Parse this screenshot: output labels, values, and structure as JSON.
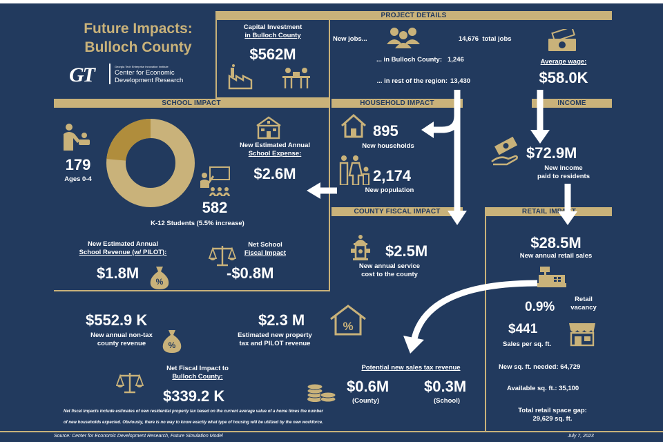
{
  "title": {
    "line1": "Future Impacts:",
    "line2": "Bulloch County"
  },
  "logo": {
    "mark": "GT",
    "smallprint": "Georgia Tech Enterprise Innovation Institute",
    "line1": "Center for Economic",
    "line2": "Development Research"
  },
  "headers": {
    "project_details": "PROJECT DETAILS",
    "school_impact": "SCHOOL IMPACT",
    "household_impact": "HOUSEHOLD IMPACT",
    "income": "INCOME",
    "county_fiscal": "COUNTY FISCAL IMPACT",
    "retail": "RETAIL IMPACT"
  },
  "capital": {
    "label1": "Capital Investment",
    "label2": "in Bulloch County",
    "value": "$562M"
  },
  "jobs": {
    "label": "New jobs...",
    "total_value": "14,676",
    "total_label": "total jobs",
    "county_label": "... in Bulloch County:",
    "county_value": "1,246",
    "region_label": "... in rest of the region:",
    "region_value": "13,430"
  },
  "wage": {
    "label": "Average wage:",
    "value": "$58.0K"
  },
  "school": {
    "ages_value": "179",
    "ages_label": "Ages 0-4",
    "students_value": "582",
    "students_label": "K-12 Students (5.5% increase)",
    "ring": {
      "total": 761,
      "ages_0_4": 179,
      "k12": 582
    },
    "expense_label1": "New Estimated Annual",
    "expense_label2": "School Expense:",
    "expense_value": "$2.6M",
    "revenue_label1": "New Estimated Annual",
    "revenue_label2": "School Revenue (w/ PILOT):",
    "revenue_value": "$1.8M",
    "net_label1": "Net School",
    "net_label2": "Fiscal Impact",
    "net_value": "-$0.8M"
  },
  "household": {
    "households_value": "895",
    "households_label": "New households",
    "population_value": "2,174",
    "population_label": "New population"
  },
  "income": {
    "value": "$72.9M",
    "label1": "New income",
    "label2": "paid to residents"
  },
  "county": {
    "value": "$2.5M",
    "label1": "New annual service",
    "label2": "cost to the county"
  },
  "retail": {
    "sales_value": "$28.5M",
    "sales_label": "New annual retail sales",
    "vacancy_value": "0.9%",
    "vacancy_label1": "Retail",
    "vacancy_label2": "vacancy",
    "sqft_value": "$441",
    "sqft_label": "Sales per sq. ft.",
    "needed": "New sq. ft. needed: 64,729",
    "available": "Available sq. ft.: 35,100",
    "gap_label": "Total retail space gap:",
    "gap_value": "29,629 sq. ft."
  },
  "nontax": {
    "value": "$552.9 K",
    "label1": "New annual non-tax",
    "label2": "county revenue"
  },
  "property": {
    "value": "$2.3 M",
    "label1": "Estimated new property",
    "label2": "tax and PILOT revenue"
  },
  "net_fiscal": {
    "label1": "Net Fiscal Impact to",
    "label2": "Bulloch County:",
    "value": "$339.2 K"
  },
  "sales_tax": {
    "label": "Potential new sales tax revenue",
    "county_value": "$0.6M",
    "county_label": "(County)",
    "school_value": "$0.3M",
    "school_label": "(School)"
  },
  "footnote": {
    "line1": "Net fiscal impacts include estimates of new residential property tax based on the current average value of a home times the number",
    "line2": "of new households expected. Obviously, there is no way to know exactly what type of housing will be utilized by the new workforce."
  },
  "source": "Source: Center for Economic Development Research, Future Simulation Model",
  "date": "July 7, 2023",
  "colors": {
    "navy": "#223a5e",
    "gold": "#c9b27a",
    "dark_gold": "#b08d3c",
    "white": "#ffffff"
  }
}
